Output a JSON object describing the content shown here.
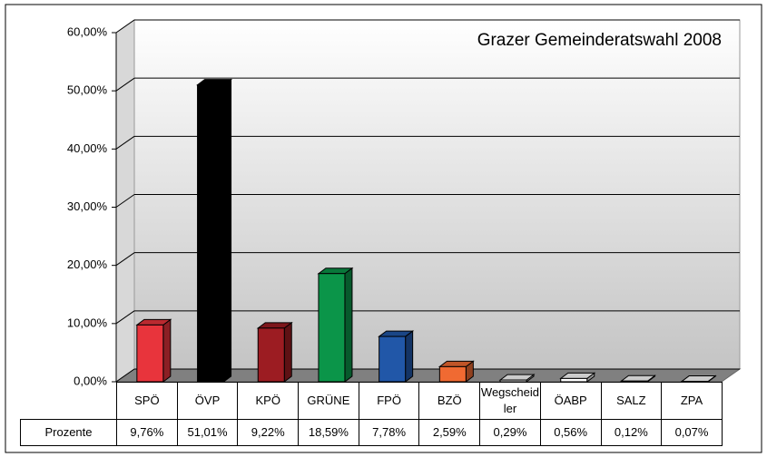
{
  "chart_data": {
    "type": "bar3d",
    "title": "Grazer Gemeinderatswahl 2008",
    "categories": [
      "SPÖ",
      "ÖVP",
      "KPÖ",
      "GRÜNE",
      "FPÖ",
      "BZÖ",
      "Wegscheidler",
      "ÖABP",
      "SALZ",
      "ZPA"
    ],
    "series": [
      {
        "name": "Prozente",
        "values": [
          9.76,
          51.01,
          9.22,
          18.59,
          7.78,
          2.59,
          0.29,
          0.56,
          0.12,
          0.07
        ],
        "value_labels": [
          "9,76%",
          "51,01%",
          "9,22%",
          "18,59%",
          "7,78%",
          "2,59%",
          "0,29%",
          "0,56%",
          "0,12%",
          "0,07%"
        ],
        "colors": [
          "#e8343c",
          "#000000",
          "#9c1c22",
          "#0b9549",
          "#2157a8",
          "#f06a32",
          "#ffffff",
          "#ffffff",
          "#ffffff",
          "#ffffff"
        ]
      }
    ],
    "ylim": [
      0,
      60
    ],
    "yticks": [
      {
        "value": 0,
        "label": "0,00%"
      },
      {
        "value": 10,
        "label": "10,00%"
      },
      {
        "value": 20,
        "label": "20,00%"
      },
      {
        "value": 30,
        "label": "30,00%"
      },
      {
        "value": 40,
        "label": "40,00%"
      },
      {
        "value": 50,
        "label": "50,00%"
      },
      {
        "value": 60,
        "label": "60,00%"
      }
    ],
    "grid": true,
    "data_table": true
  }
}
